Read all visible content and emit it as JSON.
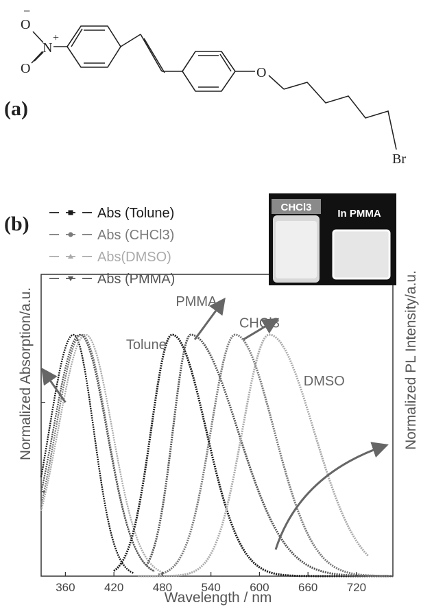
{
  "panel_a": {
    "label": "(a)",
    "atoms": {
      "o_top": "O",
      "o_minus": "−",
      "n": "N",
      "n_plus": "+",
      "o_bottom": "O",
      "o_ether": "O",
      "br": "Br"
    }
  },
  "panel_b": {
    "label": "(b)"
  },
  "inset": {
    "left_caption": "CHCl3",
    "right_caption": "In PMMA"
  },
  "colors": {
    "tolune": "#1a1a1a",
    "chcl3": "#7a7a7a",
    "dmso": "#aaaaaa",
    "pmma": "#555555",
    "axis": "#333333",
    "arrow": "#666666"
  },
  "chart_data": {
    "type": "line",
    "title": "",
    "xlabel": "Wavelength / nm",
    "ylabel_left": "Normalized Absorption/a.u.",
    "ylabel_right": "Normalized PL Intensity/a.u.",
    "xlim": [
      330,
      765
    ],
    "ylim": [
      0,
      1
    ],
    "x_ticks": [
      360,
      420,
      480,
      540,
      600,
      660,
      720
    ],
    "legend": {
      "placement": "top-left",
      "entries": [
        {
          "label": "Abs (Tolune)",
          "color_key": "tolune",
          "marker": "square"
        },
        {
          "label": "Abs (CHCl3)",
          "color_key": "chcl3",
          "marker": "circle"
        },
        {
          "label": "Abs(DMSO)",
          "color_key": "dmso",
          "marker": "triangle-up"
        },
        {
          "label": "Abs (PMMA)",
          "color_key": "pmma",
          "marker": "triangle-down"
        }
      ]
    },
    "series": [
      {
        "name": "Abs (Tolune)",
        "kind": "absorption",
        "color_key": "tolune",
        "peak_x": 370,
        "sigma_left": 30,
        "sigma_right": 25,
        "x_start": 330,
        "x_end": 445
      },
      {
        "name": "Abs (CHCl3)",
        "kind": "absorption",
        "color_key": "chcl3",
        "peak_x": 380,
        "sigma_left": 32,
        "sigma_right": 32,
        "x_start": 330,
        "x_end": 470
      },
      {
        "name": "Abs(DMSO)",
        "kind": "absorption",
        "color_key": "dmso",
        "peak_x": 385,
        "sigma_left": 34,
        "sigma_right": 33,
        "x_start": 330,
        "x_end": 480
      },
      {
        "name": "Abs (PMMA)",
        "kind": "absorption",
        "color_key": "pmma",
        "peak_x": 378,
        "sigma_left": 33,
        "sigma_right": 33,
        "x_start": 330,
        "x_end": 470
      },
      {
        "name": "Tolune",
        "kind": "emission",
        "color_key": "tolune",
        "peak_x": 492,
        "sigma_left": 26,
        "sigma_right": 42,
        "x_start": 420,
        "x_end": 765
      },
      {
        "name": "PMMA",
        "kind": "emission",
        "color_key": "pmma",
        "peak_x": 515,
        "sigma_left": 22,
        "sigma_right": 58,
        "x_start": 460,
        "x_end": 765
      },
      {
        "name": "CHCl3",
        "kind": "emission",
        "color_key": "chcl3",
        "peak_x": 570,
        "sigma_left": 30,
        "sigma_right": 48,
        "x_start": 475,
        "x_end": 760
      },
      {
        "name": "DMSO",
        "kind": "emission",
        "color_key": "dmso",
        "peak_x": 612,
        "sigma_left": 33,
        "sigma_right": 55,
        "x_start": 450,
        "x_end": 735
      }
    ],
    "annotations": [
      {
        "text": "Tolune",
        "x": 460,
        "y": 0.94
      },
      {
        "text": "PMMA",
        "x": 522,
        "y": 1.12
      },
      {
        "text": "CHCl3",
        "x": 600,
        "y": 1.03
      },
      {
        "text": "DMSO",
        "x": 680,
        "y": 0.79
      }
    ],
    "arrows": [
      {
        "x1": 360,
        "y1": 0.72,
        "x2": 333,
        "y2": 0.85
      },
      {
        "x1": 520,
        "y1": 0.98,
        "x2": 555,
        "y2": 1.14
      },
      {
        "x1": 580,
        "y1": 0.98,
        "x2": 620,
        "y2": 1.06
      },
      {
        "x1": 620,
        "y1": 0.11,
        "x2": 755,
        "y2": 0.54
      }
    ]
  }
}
